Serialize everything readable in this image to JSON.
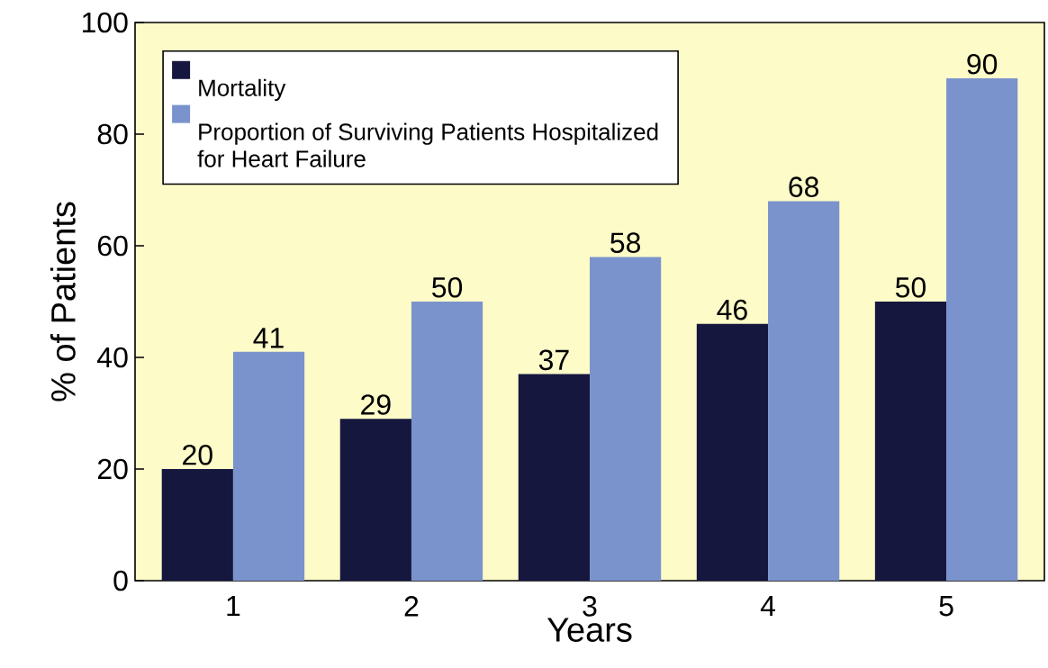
{
  "chart_data": {
    "type": "bar",
    "xlabel": "Years",
    "ylabel": "% of Patients",
    "categories": [
      "1",
      "2",
      "3",
      "4",
      "5"
    ],
    "series": [
      {
        "name": "Mortality",
        "color": "#15173f",
        "values": [
          20,
          29,
          37,
          46,
          50
        ]
      },
      {
        "name": "Proportion of Surviving Patients Hospitalized for Heart Failure",
        "color": "#7b93cc",
        "values": [
          41,
          50,
          58,
          68,
          90
        ]
      }
    ],
    "ylim": [
      0,
      100
    ],
    "yticks": [
      0,
      20,
      40,
      60,
      80,
      100
    ],
    "grid": false,
    "legend": "top left",
    "data_labels": true
  }
}
